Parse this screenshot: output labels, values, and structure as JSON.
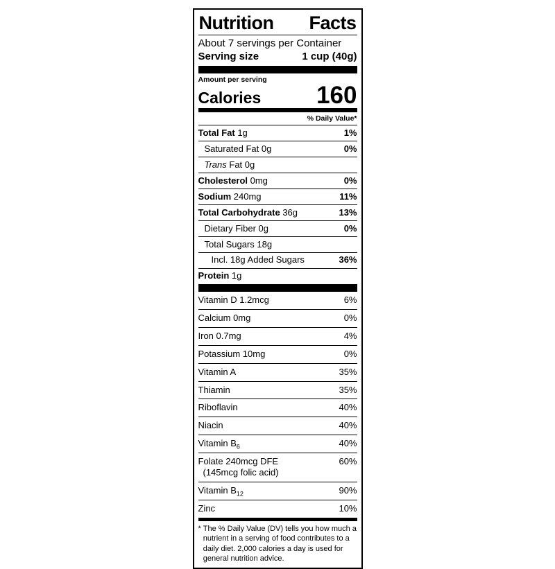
{
  "label": {
    "title_left": "Nutrition",
    "title_right": "Facts",
    "servings_per_container": "About 7 servings per Container",
    "serving_size_label": "Serving size",
    "serving_size_value": "1 cup (40g)",
    "amount_per_serving": "Amount per serving",
    "calories_label": "Calories",
    "calories_value": "160",
    "daily_value_header": "% Daily Value*",
    "main_rows": [
      {
        "bold": "Total Fat",
        "rest": " 1g",
        "value": "1%"
      },
      {
        "rest": "Saturated Fat 0g",
        "value": "0%"
      },
      {
        "italic": "Trans",
        "rest": " Fat 0g",
        "value": ""
      },
      {
        "bold": "Cholesterol",
        "rest": " 0mg",
        "value": "0%"
      },
      {
        "bold": "Sodium",
        "rest": " 240mg",
        "value": "11%"
      },
      {
        "bold": "Total Carbohydrate",
        "rest": " 36g",
        "value": "13%"
      },
      {
        "rest": "Dietary Fiber 0g",
        "value": "0%"
      },
      {
        "rest": "Total Sugars 18g",
        "value": ""
      },
      {
        "rest": "Incl. 18g Added Sugars",
        "value": "36%"
      },
      {
        "bold": "Protein",
        "rest": " 1g",
        "value": ""
      }
    ],
    "vitamin_rows": [
      {
        "label": "Vitamin D 1.2mcg",
        "value": "6%"
      },
      {
        "label": "Calcium 0mg",
        "value": "0%"
      },
      {
        "label": "Iron 0.7mg",
        "value": "4%"
      },
      {
        "label": "Potassium 10mg",
        "value": "0%"
      },
      {
        "label": "Vitamin A",
        "value": "35%"
      },
      {
        "label": "Thiamin",
        "value": "35%"
      },
      {
        "label": "Riboflavin",
        "value": "40%"
      },
      {
        "label": "Niacin",
        "value": "40%"
      },
      {
        "label": "Vitamin B",
        "sub": "6",
        "value": "40%"
      },
      {
        "label": "Folate 240mcg DFE",
        "line2": "(145mcg folic acid)",
        "value": "60%"
      },
      {
        "label": "Vitamin B",
        "sub": "12",
        "value": "90%"
      },
      {
        "label": "Zinc",
        "value": "10%"
      }
    ],
    "footnote_star": "*",
    "footnote": "The % Daily Value (DV) tells you how much a nutrient in a serving of food contributes to a daily diet. 2,000 calories a day is used for general nutrition advice."
  }
}
